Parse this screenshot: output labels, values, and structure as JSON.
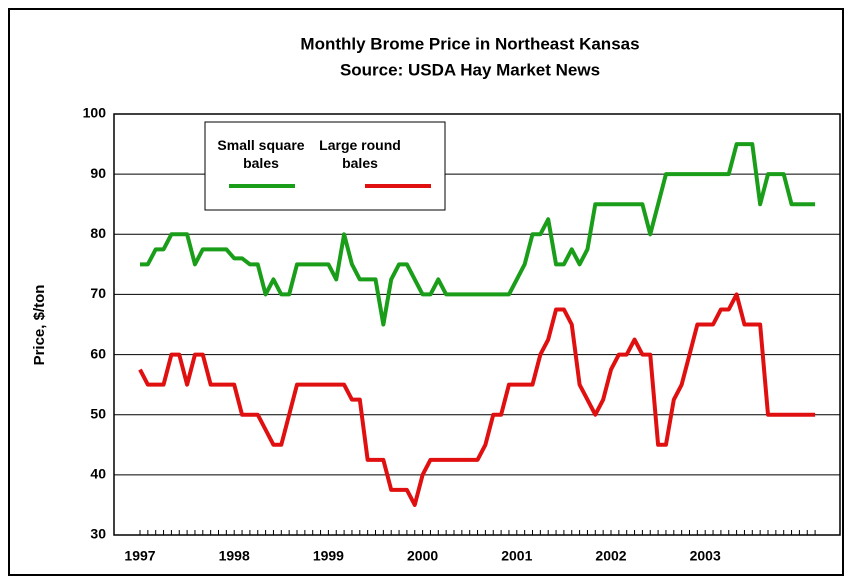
{
  "chart_data": {
    "type": "line",
    "title": "Monthly Brome Price in Northeast Kansas",
    "subtitle": "Source: USDA Hay Market News",
    "y_label": "Price, $/ton",
    "categories": [
      "1997",
      null,
      null,
      null,
      null,
      null,
      null,
      null,
      null,
      null,
      null,
      null,
      "1998",
      null,
      null,
      null,
      null,
      null,
      null,
      null,
      null,
      null,
      null,
      null,
      "1999",
      null,
      null,
      null,
      null,
      null,
      null,
      null,
      null,
      null,
      null,
      null,
      "2000",
      null,
      null,
      null,
      null,
      null,
      null,
      null,
      null,
      null,
      null,
      null,
      "2001",
      null,
      null,
      null,
      null,
      null,
      null,
      null,
      null,
      null,
      null,
      null,
      "2002",
      null,
      null,
      null,
      null,
      null,
      null,
      null,
      null,
      null,
      null,
      null,
      "2003",
      null,
      null,
      null,
      null,
      null,
      null,
      null,
      null,
      null,
      null,
      null,
      null,
      null,
      null
    ],
    "series": [
      {
        "name": "Small square bales",
        "color": "#1a9e1a",
        "values": [
          75,
          75,
          77.5,
          77.5,
          80,
          80,
          80,
          75,
          77.5,
          77.5,
          77.5,
          77.5,
          76,
          76,
          75,
          75,
          70,
          72.5,
          70,
          70,
          75,
          75,
          75,
          75,
          75,
          72.5,
          80,
          75,
          72.5,
          72.5,
          72.5,
          65,
          72.5,
          75,
          75,
          72.5,
          70,
          70,
          72.5,
          70,
          70,
          70,
          70,
          70,
          70,
          70,
          70,
          70,
          72.5,
          75,
          80,
          80,
          82.5,
          75,
          75,
          77.5,
          75,
          77.5,
          85,
          85,
          85,
          85,
          85,
          85,
          85,
          80,
          85,
          90,
          90,
          90,
          90,
          90,
          90,
          90,
          90,
          90,
          95,
          95,
          95,
          85,
          90,
          90,
          90,
          85,
          85,
          85,
          85
        ]
      },
      {
        "name": "Large round bales",
        "color": "#e01010",
        "values": [
          57.5,
          55,
          55,
          55,
          60,
          60,
          55,
          60,
          60,
          55,
          55,
          55,
          55,
          50,
          50,
          50,
          47.5,
          45,
          45,
          50,
          55,
          55,
          55,
          55,
          55,
          55,
          55,
          52.5,
          52.5,
          42.5,
          42.5,
          42.5,
          37.5,
          37.5,
          37.5,
          35,
          40,
          42.5,
          42.5,
          42.5,
          42.5,
          42.5,
          42.5,
          42.5,
          45,
          50,
          50,
          55,
          55,
          55,
          55,
          60,
          62.5,
          67.5,
          67.5,
          65,
          55,
          52.5,
          50,
          52.5,
          57.5,
          60,
          60,
          62.5,
          60,
          60,
          45,
          45,
          52.5,
          55,
          60,
          65,
          65,
          65,
          67.5,
          67.5,
          70,
          65,
          65,
          65,
          50,
          50,
          50,
          50,
          50,
          50,
          50
        ]
      }
    ],
    "ylim": [
      30,
      100
    ],
    "yticks": [
      30,
      40,
      50,
      60,
      70,
      80,
      90,
      100
    ],
    "grid": true
  }
}
